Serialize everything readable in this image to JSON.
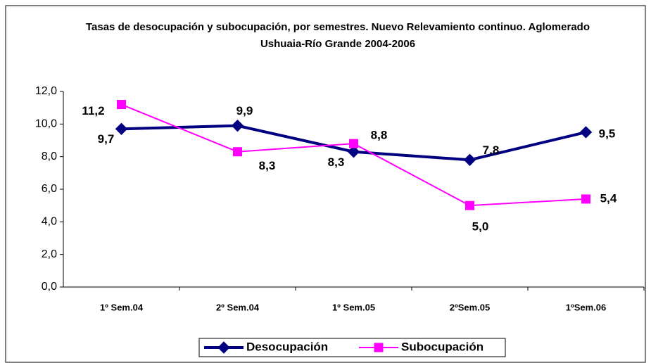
{
  "chart_data": {
    "type": "line",
    "title": "Tasas de desocupación y subocupación, por semestres. Nuevo Relevamiento continuo. Aglomerado Ushuaia-Río Grande 2004-2006",
    "categories": [
      "1º Sem.04",
      "2º Sem.04",
      "1º Sem.05",
      "2ºSem.05",
      "1ºSem.06"
    ],
    "series": [
      {
        "name": "Desocupación",
        "color": "#000080",
        "values": [
          9.7,
          9.9,
          8.3,
          7.8,
          9.5
        ],
        "value_labels": [
          "9,7",
          "9,9",
          "8,3",
          "7,8",
          "9,5"
        ]
      },
      {
        "name": "Subocupación",
        "color": "#ff00ff",
        "values": [
          11.2,
          8.3,
          8.8,
          5.0,
          5.4
        ],
        "value_labels": [
          "11,2",
          "8,3",
          "8,8",
          "5,0",
          "5,4"
        ]
      }
    ],
    "ylim": [
      0,
      12
    ],
    "yticks": [
      {
        "value": 0,
        "label": "0,0"
      },
      {
        "value": 2,
        "label": "2,0"
      },
      {
        "value": 4,
        "label": "4,0"
      },
      {
        "value": 6,
        "label": "6,0"
      },
      {
        "value": 8,
        "label": "8,0"
      },
      {
        "value": 10,
        "label": "10,0"
      },
      {
        "value": 12,
        "label": "12,0"
      }
    ],
    "legend": "bottom"
  }
}
